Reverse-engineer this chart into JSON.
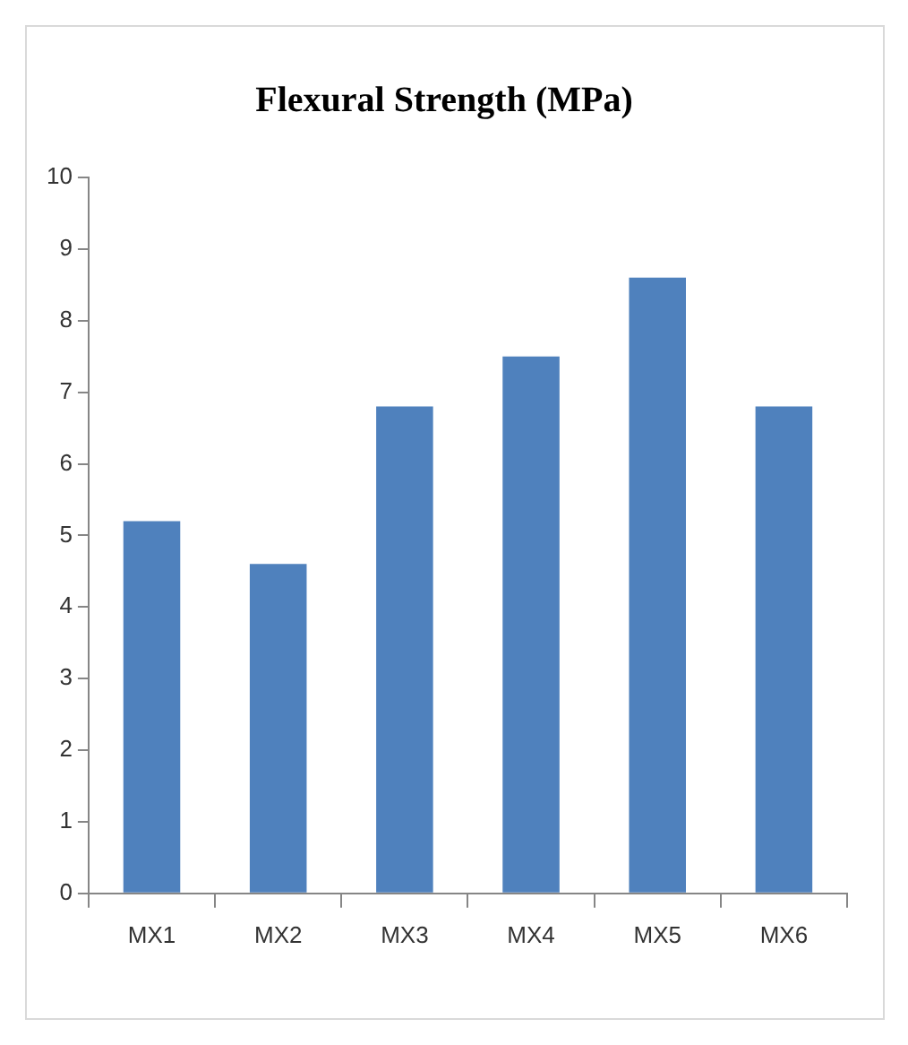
{
  "chart_data": {
    "type": "bar",
    "title": "Flexural Strength (MPa)",
    "categories": [
      "MX1",
      "MX2",
      "MX3",
      "MX4",
      "MX5",
      "MX6"
    ],
    "values": [
      5.2,
      4.6,
      6.8,
      7.5,
      8.6,
      6.8
    ],
    "color": "#4f81bd",
    "ylim": [
      0,
      10
    ],
    "yticks": [
      0,
      1,
      2,
      3,
      4,
      5,
      6,
      7,
      8,
      9,
      10
    ],
    "grid": false,
    "legend": false
  }
}
